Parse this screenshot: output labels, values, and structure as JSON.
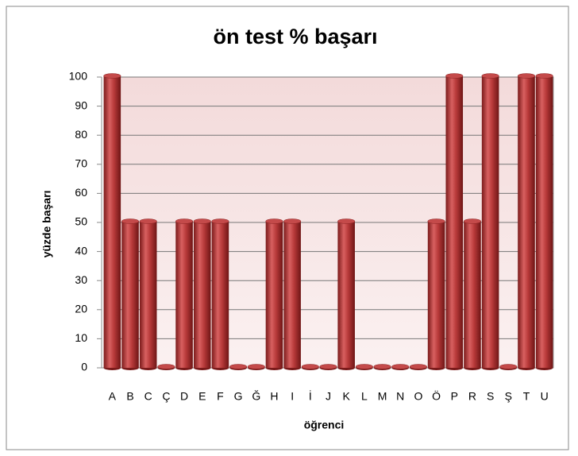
{
  "chart_data": {
    "type": "bar",
    "title": "ön test % başarı",
    "x_label": "öğrenci",
    "y_label": "yüzde başarı",
    "categories": [
      "A",
      "B",
      "C",
      "Ç",
      "D",
      "E",
      "F",
      "G",
      "Ğ",
      "H",
      "I",
      "İ",
      "J",
      "K",
      "L",
      "M",
      "N",
      "O",
      "Ö",
      "P",
      "R",
      "S",
      "Ş",
      "T",
      "U"
    ],
    "values": [
      100,
      50,
      50,
      0,
      50,
      50,
      50,
      0,
      0,
      50,
      50,
      0,
      0,
      50,
      0,
      0,
      0,
      0,
      50,
      100,
      50,
      100,
      0,
      100,
      100
    ],
    "color": "#b83a3a",
    "ylim": [
      0,
      100
    ],
    "yticks": [
      0,
      10,
      20,
      30,
      40,
      50,
      60,
      70,
      80,
      90,
      100
    ],
    "grid": true
  }
}
